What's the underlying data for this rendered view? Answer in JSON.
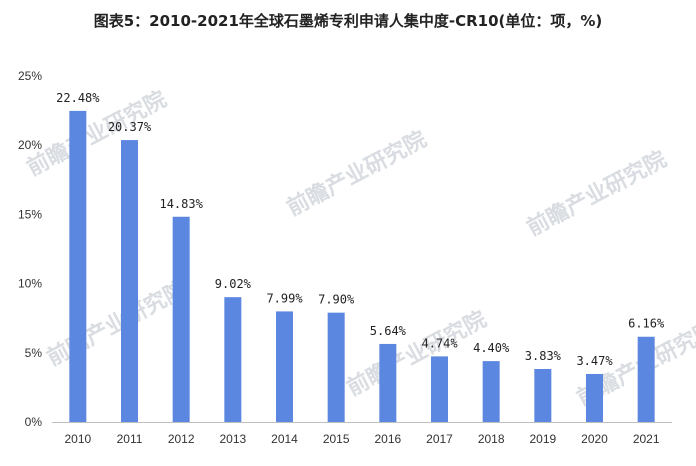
{
  "title": "图表5：2010-2021年全球石墨烯专利申请人集中度-CR10(单位：项，%)",
  "watermark": "前瞻产业研究院",
  "chart_data": {
    "type": "bar",
    "title": "图表5：2010-2021年全球石墨烯专利申请人集中度-CR10(单位：项，%)",
    "xlabel": "",
    "ylabel": "",
    "categories": [
      "2010",
      "2011",
      "2012",
      "2013",
      "2014",
      "2015",
      "2016",
      "2017",
      "2018",
      "2019",
      "2020",
      "2021"
    ],
    "values": [
      22.48,
      20.37,
      14.83,
      9.02,
      7.99,
      7.9,
      5.64,
      4.74,
      4.4,
      3.83,
      3.47,
      6.16
    ],
    "data_labels": [
      "22.48%",
      "20.37%",
      "14.83%",
      "9.02%",
      "7.99%",
      "7.90%",
      "5.64%",
      "4.74%",
      "4.40%",
      "3.83%",
      "3.47%",
      "6.16%"
    ],
    "ylim": [
      0,
      25
    ],
    "yticks": [
      0,
      5,
      10,
      15,
      20,
      25
    ],
    "ytick_labels": [
      "0%",
      "5%",
      "10%",
      "15%",
      "20%",
      "25%"
    ],
    "grid": false,
    "legend": "none",
    "bar_color": "#5b87e0"
  }
}
